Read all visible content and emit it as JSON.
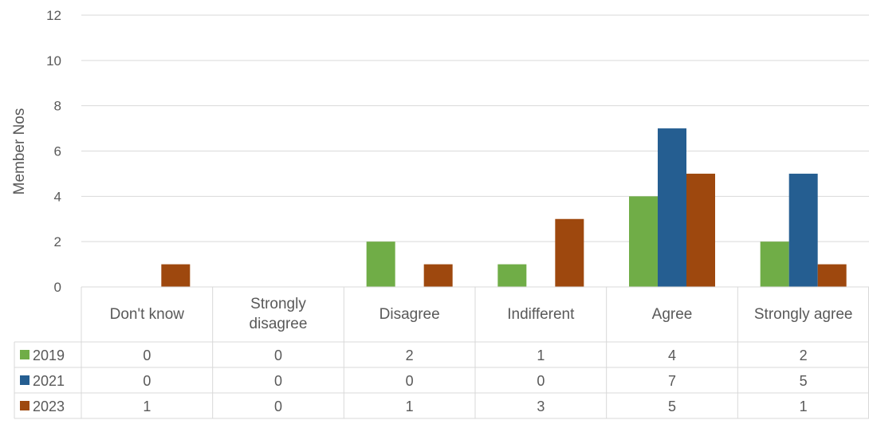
{
  "chart_data": {
    "type": "bar",
    "ylabel": "Member Nos",
    "ylim": [
      0,
      12
    ],
    "yticks": [
      0,
      2,
      4,
      6,
      8,
      10,
      12
    ],
    "grid": true,
    "legend": "data-table",
    "categories": [
      "Don't know",
      "Strongly disagree",
      "Disagree",
      "Indifferent",
      "Agree",
      "Strongly agree"
    ],
    "category_lines": [
      [
        "Don't know"
      ],
      [
        "Strongly",
        "disagree"
      ],
      [
        "Disagree"
      ],
      [
        "Indifferent"
      ],
      [
        "Agree"
      ],
      [
        "Strongly agree"
      ]
    ],
    "series": [
      {
        "name": "2019",
        "color": "#70AD47",
        "values": [
          0,
          0,
          2,
          1,
          4,
          2
        ]
      },
      {
        "name": "2021",
        "color": "#255E91",
        "values": [
          0,
          0,
          0,
          0,
          7,
          5
        ]
      },
      {
        "name": "2023",
        "color": "#9E480E",
        "values": [
          1,
          0,
          1,
          3,
          5,
          1
        ]
      }
    ]
  }
}
